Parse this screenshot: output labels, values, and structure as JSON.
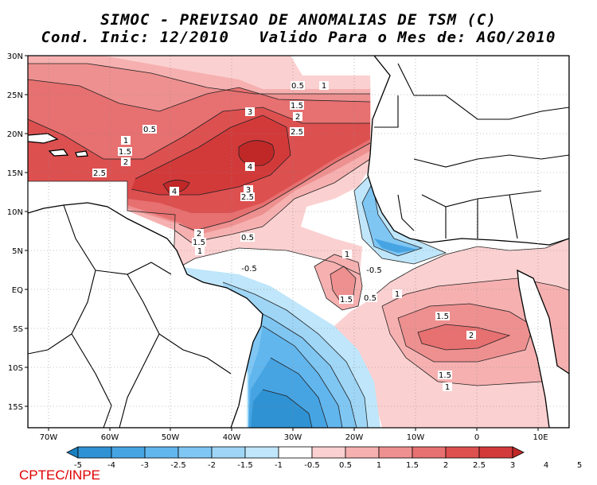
{
  "title": {
    "line1": "SIMOC - PREVISAO DE ANOMALIAS DE TSM (C)",
    "line2": "Cond. Inic: 12/2010   Valido Para o Mes de: AGO/2010"
  },
  "axes": {
    "lat_labels": [
      "30N",
      "25N",
      "20N",
      "15N",
      "10N",
      "5N",
      "EQ",
      "5S",
      "10S",
      "15S"
    ],
    "lon_labels": [
      "70W",
      "60W",
      "50W",
      "40W",
      "30W",
      "20W",
      "10W",
      "0",
      "10E"
    ]
  },
  "contour_labels": [
    {
      "text": "0.5"
    },
    {
      "text": "1"
    },
    {
      "text": "1.5"
    },
    {
      "text": "2"
    },
    {
      "text": "3"
    },
    {
      "text": "2.5"
    },
    {
      "text": "0.5"
    },
    {
      "text": "1"
    },
    {
      "text": "1.5"
    },
    {
      "text": "2"
    },
    {
      "text": "2.5"
    },
    {
      "text": "4"
    },
    {
      "text": "4"
    },
    {
      "text": "3"
    },
    {
      "text": "2.5"
    },
    {
      "text": "2"
    },
    {
      "text": "1.5"
    },
    {
      "text": "1"
    },
    {
      "text": "0.5"
    },
    {
      "text": "-0.5"
    },
    {
      "text": "1"
    },
    {
      "text": "-0.5"
    },
    {
      "text": "1.5"
    },
    {
      "text": "0.5"
    },
    {
      "text": "1"
    },
    {
      "text": "1.5"
    },
    {
      "text": "2"
    },
    {
      "text": "1.5"
    },
    {
      "text": "1"
    }
  ],
  "colorbar": {
    "labels": [
      "-5",
      "-4",
      "-3",
      "-2.5",
      "-2",
      "-1.5",
      "-1",
      "-0.5",
      "0.5",
      "1",
      "1.5",
      "2",
      "2.5",
      "3",
      "4",
      "5"
    ],
    "colors": [
      "#1a7fc0",
      "#2f92d3",
      "#46a4e3",
      "#62b6ee",
      "#7fc6f3",
      "#9fd6f6",
      "#bfe6fa",
      "#ffffff",
      "#fbd0d0",
      "#f6b0b0",
      "#ee9090",
      "#e77070",
      "#dd5050",
      "#d23a3a",
      "#c02828"
    ]
  },
  "credit": "CPTEC/INPE"
}
